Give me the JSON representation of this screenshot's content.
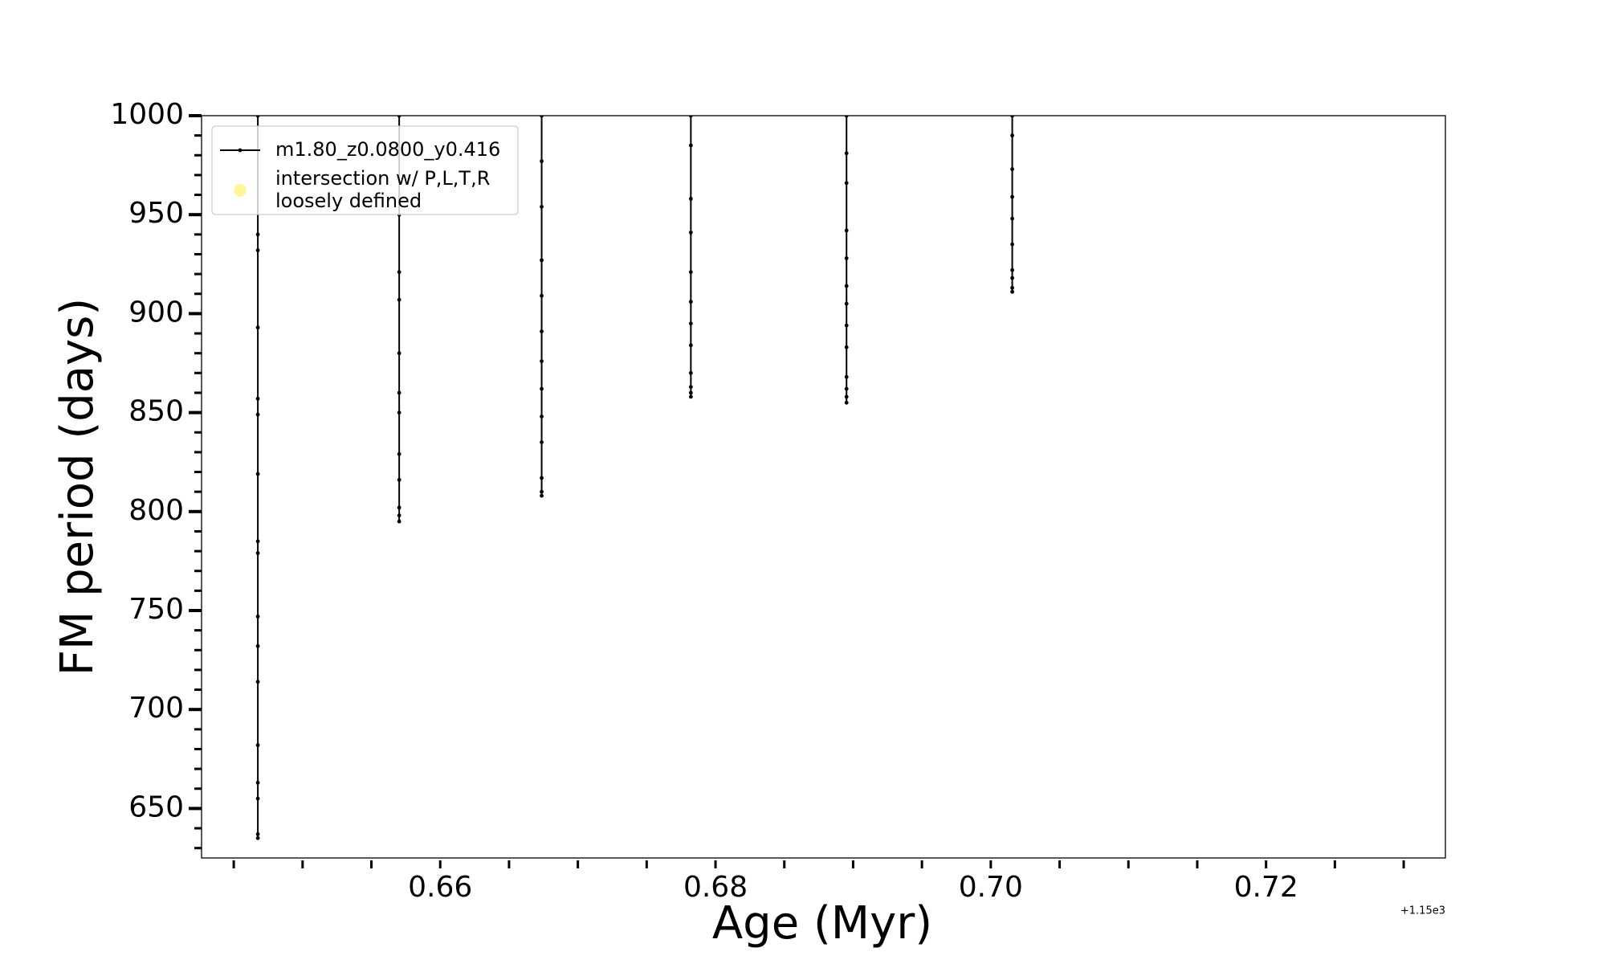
{
  "chart_data": {
    "type": "line",
    "xlabel": "Age (Myr)",
    "ylabel": "FM period (days)",
    "x_offset_label": "+1.15e3",
    "xlim": [
      0.64266,
      0.73303
    ],
    "ylim": [
      625,
      1000
    ],
    "xticks": [
      0.66,
      0.68,
      {
        "value": 0.7,
        "label": "0.70"
      },
      0.72
    ],
    "xticks_minor": [
      0.645,
      0.65,
      0.655,
      0.665,
      0.67,
      0.675,
      0.685,
      0.69,
      0.695,
      0.705,
      0.71,
      0.715,
      0.725,
      0.73
    ],
    "yticks": [
      650,
      700,
      750,
      800,
      850,
      900,
      950,
      1000
    ],
    "yticks_minor": [
      630,
      640,
      660,
      670,
      680,
      690,
      710,
      720,
      730,
      740,
      760,
      770,
      780,
      790,
      810,
      820,
      830,
      840,
      860,
      870,
      880,
      890,
      910,
      920,
      930,
      940,
      960,
      970,
      980,
      990
    ],
    "legend": "upper left",
    "series": [
      {
        "name": "m1.80_z0.0800_y0.416",
        "color": "#000000",
        "marker": true,
        "x": [
          0.64675,
          0.64675,
          0.64675,
          0.64675,
          0.64675,
          0.64675,
          0.64675,
          0.64675,
          0.64675,
          0.64675,
          0.64675,
          0.64675,
          0.64675,
          0.64675,
          0.64675,
          0.64675,
          0.64675,
          null,
          0.65702,
          0.65702,
          0.65702,
          0.65702,
          0.65702,
          0.65702,
          0.65702,
          0.65702,
          0.65702,
          0.65702,
          0.65702,
          0.65702,
          null,
          0.66737,
          0.66737,
          0.66737,
          0.66737,
          0.66737,
          0.66737,
          0.66737,
          0.66737,
          0.66737,
          0.66737,
          0.66737,
          0.66737,
          0.66737,
          null,
          0.67821,
          0.67821,
          0.67821,
          0.67821,
          0.67821,
          0.67821,
          0.67821,
          0.67821,
          0.67821,
          0.67821,
          0.67821,
          0.67821,
          null,
          0.68952,
          0.68952,
          0.68952,
          0.68952,
          0.68952,
          0.68952,
          0.68952,
          0.68952,
          0.68952,
          0.68952,
          0.68952,
          0.68952,
          0.68952,
          null,
          0.70156,
          0.70156,
          0.70156,
          0.70156,
          0.70156,
          0.70156,
          0.70156,
          0.70156,
          0.70156,
          0.70156
        ],
        "values": [
          635,
          637,
          655,
          663,
          682,
          714,
          732,
          747,
          779,
          785,
          819,
          849,
          857,
          893,
          932,
          940,
          1000,
          null,
          795,
          798,
          802,
          816,
          829,
          850,
          860,
          880,
          907,
          921,
          950,
          1000,
          null,
          808,
          810,
          817,
          835,
          848,
          862,
          876,
          891,
          909,
          927,
          954,
          977,
          1000,
          null,
          858,
          860,
          863,
          870,
          884,
          895,
          906,
          921,
          941,
          958,
          985,
          1000,
          null,
          855,
          858,
          862,
          868,
          883,
          894,
          905,
          914,
          928,
          942,
          966,
          981,
          1000,
          null,
          911,
          913,
          918,
          922,
          935,
          948,
          959,
          973,
          990,
          1000
        ]
      },
      {
        "name": "intersection w/ P,L,T,R\nloosely defined",
        "color": "#fff59d",
        "marker": true,
        "x": [],
        "values": []
      }
    ]
  }
}
